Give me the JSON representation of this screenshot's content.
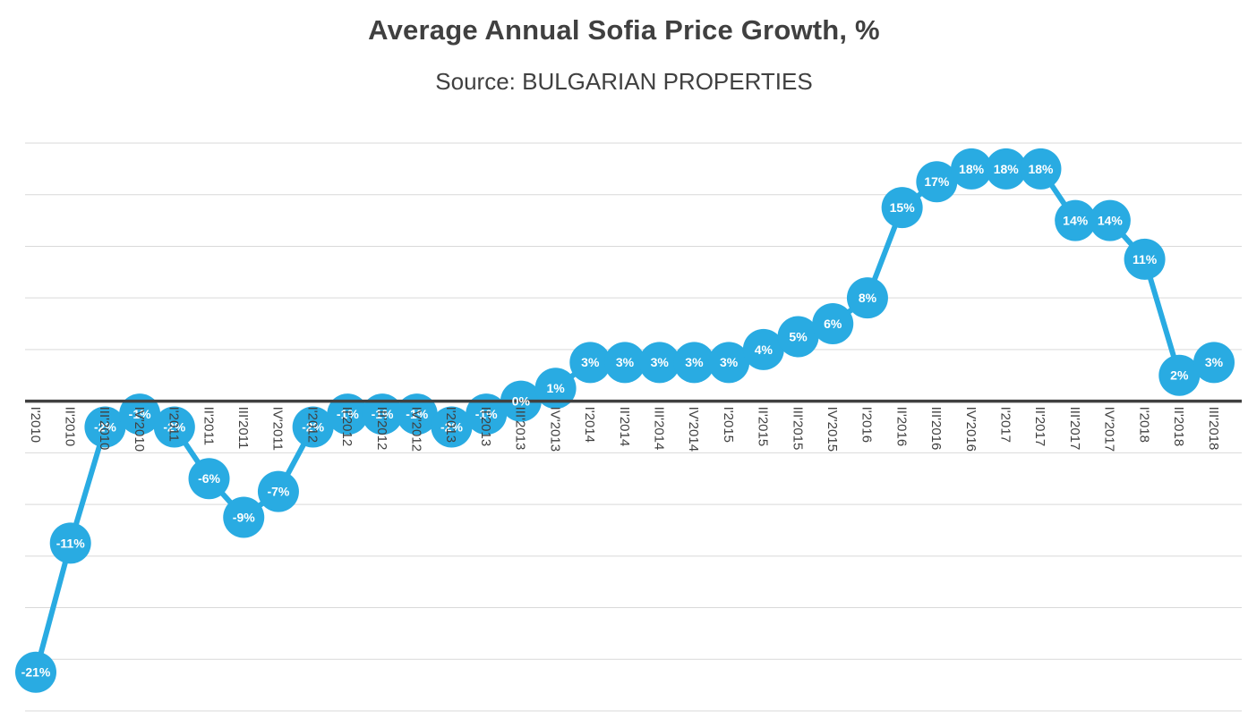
{
  "chart": {
    "title": "Average Annual Sofia Price Growth, %",
    "subtitle": "Source: BULGARIAN PROPERTIES"
  },
  "chart_data": {
    "type": "line",
    "title": "Average Annual Sofia Price Growth, %",
    "subtitle": "Source: BULGARIAN PROPERTIES",
    "categories": [
      "I'2010",
      "II'2010",
      "III'2010",
      "IV'2010",
      "I'2011",
      "II'2011",
      "III'2011",
      "IV'2011",
      "I'2012",
      "II'2012",
      "III'2012",
      "IV'2012",
      "I'2013",
      "II'2013",
      "III'2013",
      "IV'2013",
      "I'2014",
      "II'2014",
      "III'2014",
      "IV'2014",
      "I'2015",
      "II'2015",
      "III'2015",
      "IV'2015",
      "I'2016",
      "II'2016",
      "III'2016",
      "IV'2016",
      "I'2017",
      "II'2017",
      "III'2017",
      "IV'2017",
      "I'2018",
      "II'2018",
      "III'2018"
    ],
    "values": [
      -21,
      -11,
      -2,
      -1,
      -2,
      -6,
      -9,
      -7,
      -2,
      -1,
      -1,
      -1,
      -2,
      -1,
      0,
      1,
      3,
      3,
      3,
      3,
      3,
      4,
      5,
      6,
      8,
      15,
      17,
      18,
      18,
      18,
      14,
      14,
      11,
      2,
      3
    ],
    "label_format": "{v}%",
    "xlabel": "",
    "ylabel": "",
    "ylim": [
      -24,
      20
    ],
    "gridline_interval": 4,
    "grid": "horizontal",
    "legend": "none",
    "y_axis_tick_labels_visible": false,
    "x_label_rotation_deg": 90,
    "marker_style": "large-filled-circle-with-inside-label",
    "colors": {
      "series": "#29ABE2",
      "title": "#404040",
      "gridline": "#D9D9D9",
      "axis": "#404040",
      "data_label": "#FFFFFF"
    }
  }
}
